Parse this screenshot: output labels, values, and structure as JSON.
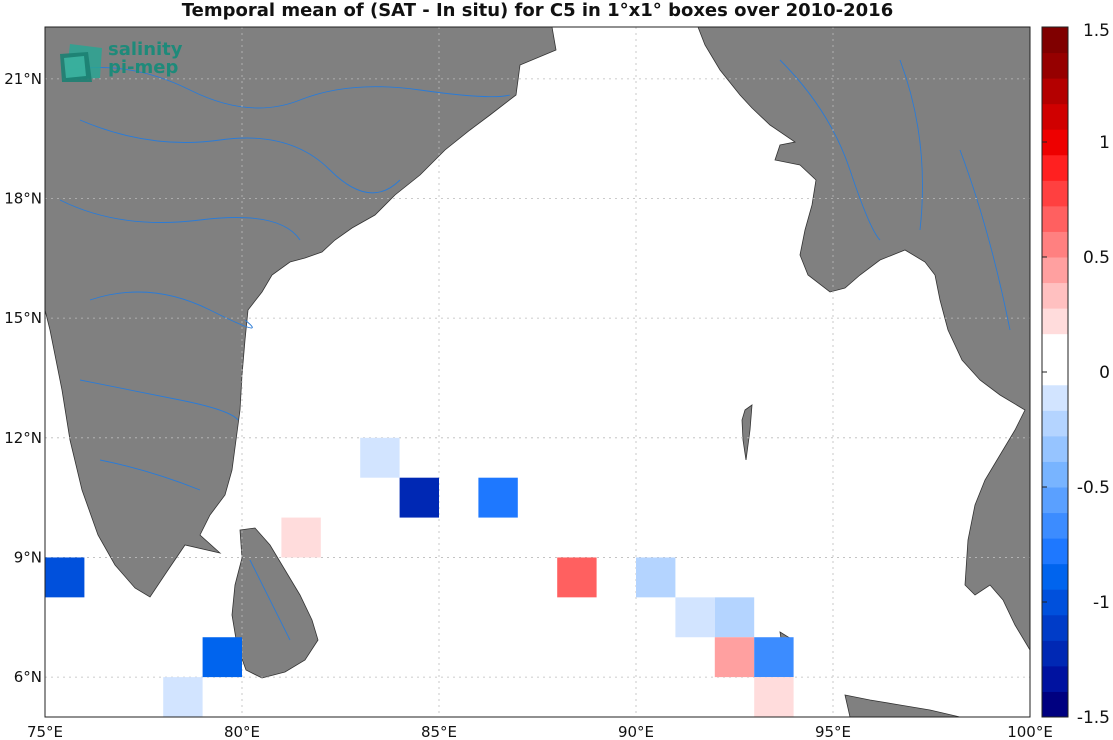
{
  "title": "Temporal mean of (SAT - In situ) for C5 in 1°x1° boxes over 2010-2016",
  "logo": {
    "line1": "salinity",
    "line2": "pi-mep"
  },
  "colors": {
    "land": "#808080",
    "river": "#2b7bd6",
    "grid": "#bbbbbb"
  },
  "axes": {
    "lon_range": [
      75,
      100
    ],
    "lat_range": [
      5,
      22.3
    ],
    "lon_ticks": [
      75,
      80,
      85,
      90,
      95,
      100
    ],
    "lon_labels": [
      "75°E",
      "80°E",
      "85°E",
      "90°E",
      "95°E",
      "100°E"
    ],
    "lat_ticks": [
      6,
      9,
      12,
      15,
      18,
      21
    ],
    "lat_labels": [
      "6°N",
      "9°N",
      "12°N",
      "15°N",
      "18°N",
      "21°N"
    ]
  },
  "colorbar": {
    "range": [
      -1.5,
      1.5
    ],
    "ticks": [
      -1.5,
      -1,
      -0.5,
      0,
      0.5,
      1,
      1.5
    ],
    "tick_labels": [
      "-1.5",
      "-1",
      "-0.5",
      "0",
      "0.5",
      "1",
      "1.5"
    ],
    "colors": [
      "#000080",
      "#0012a0",
      "#0028b4",
      "#003cc8",
      "#0050dc",
      "#0064ee",
      "#1e78ff",
      "#3c8cff",
      "#5aa0ff",
      "#78b4ff",
      "#96c4ff",
      "#b4d4ff",
      "#d2e4ff",
      "#ffffff",
      "#ffffff",
      "#ffdcdc",
      "#ffc0c0",
      "#ffa0a0",
      "#ff8080",
      "#ff6060",
      "#ff4040",
      "#ff2020",
      "#ee0000",
      "#d00000",
      "#b40000",
      "#960000",
      "#800000"
    ]
  },
  "chart_data": {
    "type": "heatmap",
    "title": "Temporal mean of (SAT - In situ) for C5 in 1°x1° boxes over 2010-2016",
    "cell_size_deg": 1,
    "cells": [
      {
        "lon": 75,
        "lat": 8,
        "value": -1.1,
        "color": "#0050dc"
      },
      {
        "lon": 79,
        "lat": 6,
        "value": -0.9,
        "color": "#0064ee"
      },
      {
        "lon": 78,
        "lat": 5,
        "value": -0.15,
        "color": "#d2e4ff"
      },
      {
        "lon": 81,
        "lat": 9,
        "value": 0.12,
        "color": "#ffdcdc"
      },
      {
        "lon": 83,
        "lat": 11,
        "value": -0.15,
        "color": "#d2e4ff"
      },
      {
        "lon": 84,
        "lat": 10,
        "value": -1.3,
        "color": "#0028b4"
      },
      {
        "lon": 86,
        "lat": 10,
        "value": -0.7,
        "color": "#1e78ff"
      },
      {
        "lon": 88,
        "lat": 8,
        "value": 0.6,
        "color": "#ff6060"
      },
      {
        "lon": 90,
        "lat": 8,
        "value": -0.3,
        "color": "#b4d4ff"
      },
      {
        "lon": 91,
        "lat": 7,
        "value": -0.15,
        "color": "#d2e4ff"
      },
      {
        "lon": 92,
        "lat": 7,
        "value": -0.3,
        "color": "#b4d4ff"
      },
      {
        "lon": 92,
        "lat": 6,
        "value": 0.3,
        "color": "#ffa0a0"
      },
      {
        "lon": 93,
        "lat": 6,
        "value": -0.65,
        "color": "#3c8cff"
      },
      {
        "lon": 93,
        "lat": 5,
        "value": 0.12,
        "color": "#ffdcdc"
      }
    ]
  }
}
